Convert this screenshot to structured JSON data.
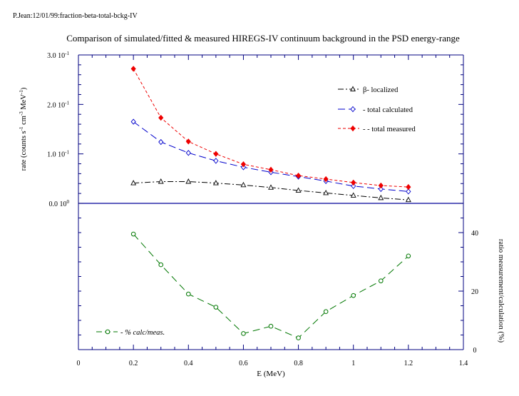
{
  "header": {
    "id_text": "P.Jean:12/01/99:fraction-beta-total-bckg-IV",
    "title": "Comparison of simulated/fitted & measured HIREGS-IV continuum background in the PSD energy-range"
  },
  "colors": {
    "beta": "#000000",
    "calc": "#0000cc",
    "meas": "#ee0000",
    "ratio": "#007700",
    "axis": "#000080",
    "zero_line": "#000099"
  },
  "chart_data": [
    {
      "type": "line",
      "title": "Comparison of simulated/fitted & measured HIREGS-IV continuum background in the PSD energy-range",
      "ylabel_parts": [
        "rate (counts s",
        "-1",
        " cm",
        "-3",
        " MeV",
        "-1",
        ")"
      ],
      "ylim": [
        0,
        0.3
      ],
      "xlim": [
        0,
        1.4
      ],
      "ytick_labels": [
        {
          "value": 0.3,
          "text": "3.0 10",
          "exp": "-1"
        },
        {
          "value": 0.2,
          "text": "2.0 10",
          "exp": "-1"
        },
        {
          "value": 0.1,
          "text": "1.0 10",
          "exp": "-1"
        },
        {
          "value": 0.0,
          "text": "0.0 10",
          "exp": "0"
        }
      ],
      "x": [
        0.2,
        0.3,
        0.4,
        0.5,
        0.6,
        0.7,
        0.8,
        0.9,
        1.0,
        1.1,
        1.2
      ],
      "series": [
        {
          "key": "beta",
          "name": "β- localized",
          "marker": "triangle",
          "dash": "8,3,2,3",
          "values": [
            0.041,
            0.044,
            0.044,
            0.041,
            0.037,
            0.032,
            0.026,
            0.021,
            0.016,
            0.011,
            0.007
          ]
        },
        {
          "key": "calc",
          "name": "- total calculated",
          "marker": "diamond",
          "dash": "10,5",
          "values": [
            0.165,
            0.124,
            0.102,
            0.086,
            0.073,
            0.063,
            0.054,
            0.045,
            0.035,
            0.029,
            0.024
          ]
        },
        {
          "key": "meas",
          "name": "- - total measured",
          "marker": "diamond-filled",
          "dash": "4,3",
          "values": [
            0.272,
            0.173,
            0.125,
            0.1,
            0.079,
            0.068,
            0.056,
            0.049,
            0.042,
            0.036,
            0.033
          ]
        }
      ],
      "legend_position": "top-right"
    },
    {
      "type": "line",
      "xlabel": "E (MeV)",
      "ylabel": "ratio measurement/calculation (%)",
      "xlim": [
        0,
        1.4
      ],
      "xtick_labels": [
        "0",
        "0.2",
        "0.4",
        "0.6",
        "0.8",
        "1",
        "1.2",
        "1.4"
      ],
      "ylim": [
        0,
        50
      ],
      "ytick_labels": [
        "0",
        "20",
        "40"
      ],
      "x": [
        0.2,
        0.3,
        0.4,
        0.5,
        0.6,
        0.7,
        0.8,
        0.9,
        1.0,
        1.1,
        1.2
      ],
      "series": [
        {
          "key": "ratio",
          "name": "- % calc/meas.",
          "marker": "circle",
          "dash": "10,6",
          "values": [
            39.5,
            29,
            19,
            14.5,
            5.5,
            8,
            4,
            13,
            18.5,
            23.5,
            32
          ]
        }
      ],
      "legend_position": "bottom-left"
    }
  ]
}
